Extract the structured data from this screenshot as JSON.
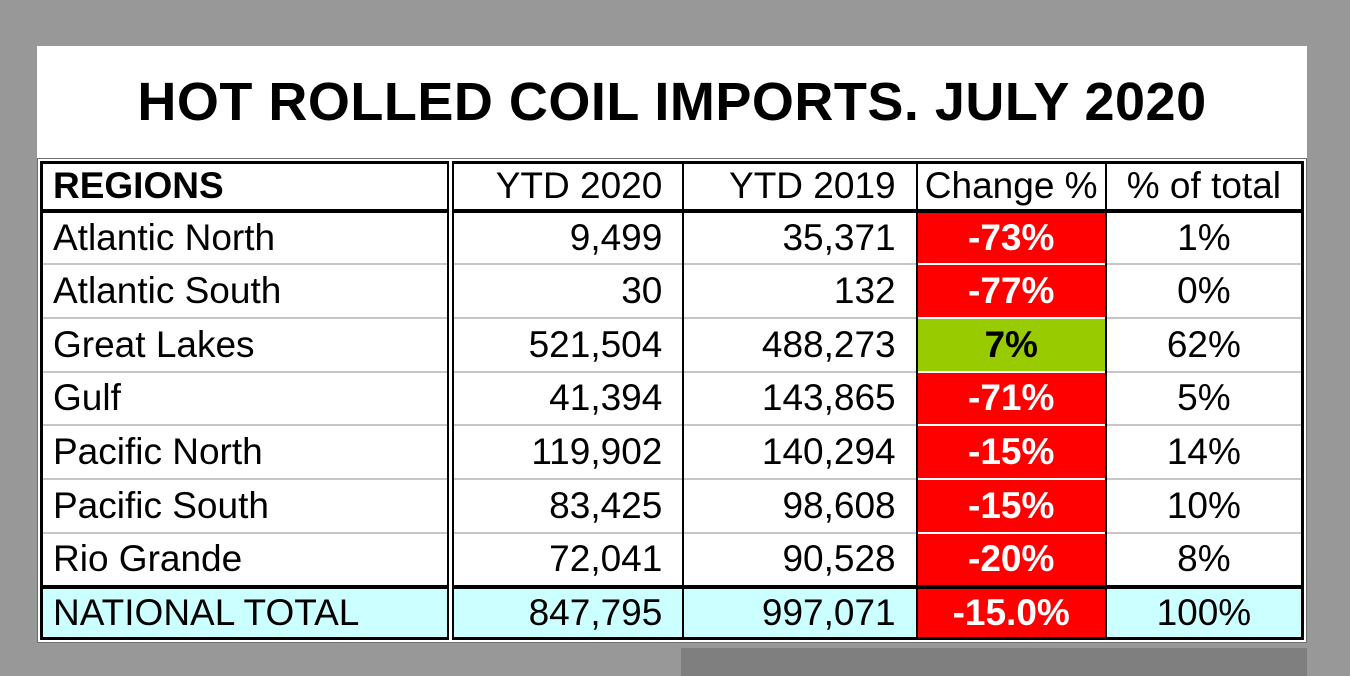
{
  "title": "HOT ROLLED COIL IMPORTS. JULY 2020",
  "table": {
    "headers": [
      "REGIONS",
      "YTD 2020",
      "YTD 2019",
      "Change %",
      "% of total"
    ],
    "rows": [
      {
        "region": "Atlantic North",
        "ytd_2020": "9,499",
        "ytd_2019": "35,371",
        "change_pct": "-73%",
        "pct_of_total": "1%",
        "change_bg": "#FF0000"
      },
      {
        "region": "Atlantic South",
        "ytd_2020": "30",
        "ytd_2019": "132",
        "change_pct": "-77%",
        "pct_of_total": "0%",
        "change_bg": "#FF0000"
      },
      {
        "region": "Great Lakes",
        "ytd_2020": "521,504",
        "ytd_2019": "488,273",
        "change_pct": "7%",
        "pct_of_total": "62%",
        "change_bg": "#99CC00"
      },
      {
        "region": "Gulf",
        "ytd_2020": "41,394",
        "ytd_2019": "143,865",
        "change_pct": "-71%",
        "pct_of_total": "5%",
        "change_bg": "#FF0000"
      },
      {
        "region": "Pacific North",
        "ytd_2020": "119,902",
        "ytd_2019": "140,294",
        "change_pct": "-15%",
        "pct_of_total": "14%",
        "change_bg": "#FF0000"
      },
      {
        "region": "Pacific South",
        "ytd_2020": "83,425",
        "ytd_2019": "98,608",
        "change_pct": "-15%",
        "pct_of_total": "10%",
        "change_bg": "#FF0000"
      },
      {
        "region": "Rio Grande",
        "ytd_2020": "72,041",
        "ytd_2019": "90,528",
        "change_pct": "-20%",
        "pct_of_total": "8%",
        "change_bg": "#FF0000"
      }
    ],
    "total": {
      "region": "NATIONAL TOTAL",
      "ytd_2020": "847,795",
      "ytd_2019": "997,071",
      "change_pct": "-15.0%",
      "pct_of_total": "100%",
      "change_bg": "#FF0000"
    }
  },
  "colors": {
    "page_background": "#989898",
    "shadow_band": "#7F7F7F",
    "canvas_background": "#FFFFFF",
    "negative_change_bg": "#FF0000",
    "negative_change_text": "#FFFFFF",
    "positive_change_bg": "#99CC00",
    "positive_change_text": "#000000",
    "total_row_bg": "#CCFFFF",
    "gridline": "#C6C6C6",
    "border": "#000000"
  },
  "chart_data": {
    "type": "table",
    "title": "HOT ROLLED COIL IMPORTS. JULY 2020",
    "columns": [
      "REGIONS",
      "YTD 2020",
      "YTD 2019",
      "Change %",
      "% of total"
    ],
    "rows": [
      [
        "Atlantic North",
        9499,
        35371,
        -73,
        1
      ],
      [
        "Atlantic South",
        30,
        132,
        -77,
        0
      ],
      [
        "Great Lakes",
        521504,
        488273,
        7,
        62
      ],
      [
        "Gulf",
        41394,
        143865,
        -71,
        5
      ],
      [
        "Pacific North",
        119902,
        140294,
        -15,
        14
      ],
      [
        "Pacific South",
        83425,
        98608,
        -15,
        10
      ],
      [
        "Rio Grande",
        72041,
        90528,
        -20,
        8
      ]
    ],
    "total_row": [
      "NATIONAL TOTAL",
      847795,
      997071,
      -15.0,
      100
    ]
  }
}
